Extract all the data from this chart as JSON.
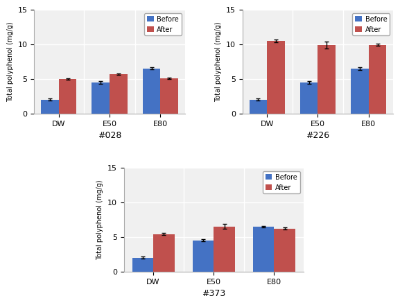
{
  "charts": [
    {
      "title": "#028",
      "before": [
        2.0,
        4.5,
        6.5
      ],
      "after": [
        5.0,
        5.7,
        5.1
      ],
      "before_err": [
        0.15,
        0.2,
        0.15
      ],
      "after_err": [
        0.1,
        0.1,
        0.1
      ],
      "categories": [
        "DW",
        "E50",
        "E80"
      ]
    },
    {
      "title": "#226",
      "before": [
        2.0,
        4.5,
        6.5
      ],
      "after": [
        10.5,
        9.9,
        9.9
      ],
      "before_err": [
        0.15,
        0.2,
        0.2
      ],
      "after_err": [
        0.2,
        0.5,
        0.15
      ],
      "categories": [
        "DW",
        "E50",
        "E80"
      ]
    },
    {
      "title": "#373",
      "before": [
        2.0,
        4.5,
        6.5
      ],
      "after": [
        5.4,
        6.5,
        6.2
      ],
      "before_err": [
        0.15,
        0.15,
        0.1
      ],
      "after_err": [
        0.15,
        0.35,
        0.15
      ],
      "categories": [
        "DW",
        "E50",
        "E80"
      ]
    }
  ],
  "bar_color_before": "#4472C4",
  "bar_color_after": "#C0504D",
  "ylabel": "Total polyphenol (mg/g)",
  "ylim": [
    0,
    15
  ],
  "yticks": [
    0,
    5,
    10,
    15
  ],
  "bar_width": 0.35,
  "legend_labels": [
    "Before",
    "After"
  ],
  "background_color": "#f0f0f0"
}
